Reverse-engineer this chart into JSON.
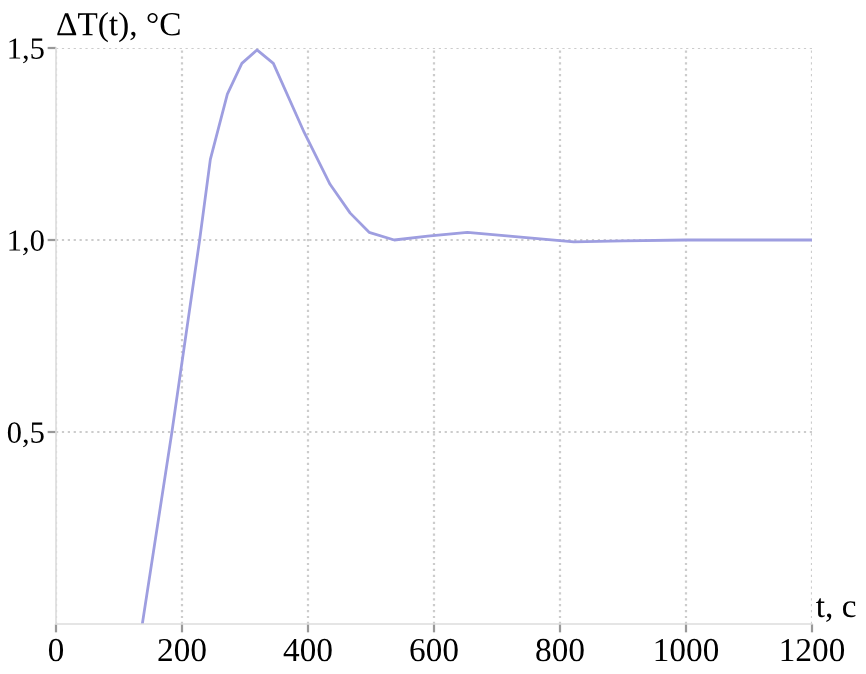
{
  "chart_data": {
    "type": "line",
    "ylabel": "ΔT(t), °C",
    "xlabel": "t, c",
    "series": [
      {
        "color": "#9e9ee0",
        "x": [
          137,
          184,
          228,
          245,
          272,
          295,
          319,
          345,
          394,
          435,
          467,
          497,
          537,
          590,
          653,
          720,
          822,
          900,
          1000,
          1100,
          1200
        ],
        "values": [
          0,
          0.5,
          1.0,
          1.21,
          1.38,
          1.46,
          1.495,
          1.46,
          1.28,
          1.145,
          1.07,
          1.02,
          1.0,
          1.01,
          1.02,
          1.01,
          0.995,
          0.998,
          1.0,
          1.0,
          1.0
        ]
      }
    ],
    "xlim": [
      0,
      1200
    ],
    "ylim": [
      0,
      1.5
    ],
    "xticks": [
      0,
      200,
      400,
      600,
      800,
      1000,
      1200
    ],
    "yticks": [
      {
        "value": 0.5,
        "label": "0,5"
      },
      {
        "value": 1.0,
        "label": "1,0"
      },
      {
        "value": 1.5,
        "label": "1,5"
      }
    ],
    "grid": true,
    "legend": false
  }
}
